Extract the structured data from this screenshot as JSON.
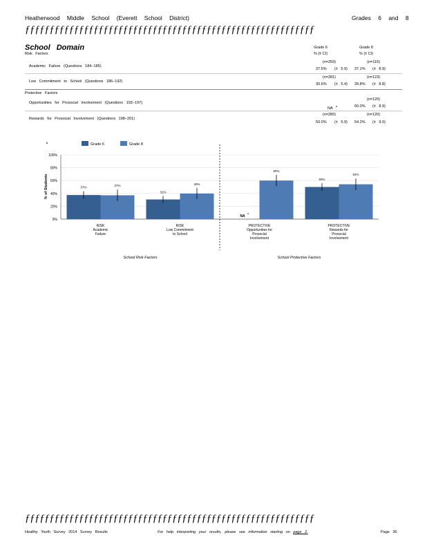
{
  "header": {
    "school": "Heatherwood Middle School (Everett School District)",
    "grades": "Grades 6 and 8",
    "rule": "ƒƒƒƒƒƒƒƒƒƒƒƒƒƒƒƒƒƒƒƒƒƒƒƒƒƒƒƒƒƒƒƒƒƒƒƒƒƒƒƒƒƒƒƒƒƒƒƒƒƒƒƒƒƒƒƒƒƒƒ"
  },
  "domain": {
    "title": "School Domain",
    "col_grade6": "Grade 6",
    "col_grade8": "Grade 8",
    "col_unit": "% (± CI)",
    "risk_label": "Risk Factors",
    "protective_label": "Protective Factors",
    "rows": [
      {
        "label": "Academic Failure (Questions 184−185)",
        "n6": "(n=259)",
        "n8": "(n=116)",
        "v6": "37.5%",
        "ci6": "(± 5.9)",
        "v8": "37.1%",
        "ci8": "(± 8.9)"
      },
      {
        "label": "Low Commitment to School (Questions 186−192)",
        "n6": "(n=281)",
        "n8": "(n=123)",
        "v6": "30.6%",
        "ci6": "(± 5.4)",
        "v8": "39.8%",
        "ci8": "(± 8.8)"
      },
      {
        "label": "Opportunities for Prosocial Involvement (Questions 193−197)",
        "n6": "",
        "n8": "(n=120)",
        "v6": "NA",
        "v6sup": "a",
        "ci6": "",
        "v8": "60.0%",
        "ci8": "(± 8.9)"
      },
      {
        "label": "Rewards for Prosocial Involvement (Questions 198−201)",
        "n6": "(n=280)",
        "n8": "(n=120)",
        "v6": "50.0%",
        "ci6": "(± 5.9)",
        "v8": "54.2%",
        "ci8": "(± 9.0)"
      }
    ]
  },
  "chart_data": {
    "type": "bar",
    "ylabel": "% of Students",
    "ylim": [
      0,
      100
    ],
    "yticks": [
      "0%",
      "20%",
      "40%",
      "60%",
      "80%",
      "100%"
    ],
    "grid": true,
    "legend_position": "top",
    "categories": [
      [
        "RISK",
        "Academic",
        "Failure"
      ],
      [
        "RISK",
        "Low Commitment",
        "to School"
      ],
      [
        "PROTECTIVE",
        "Opportunities for",
        "Prosocial",
        "Involvement"
      ],
      [
        "PROTECTIVE",
        "Rewards for",
        "Prosocial",
        "Involvement"
      ]
    ],
    "series": [
      {
        "name": "Grade 6",
        "color": "#365f91",
        "values": [
          37.5,
          30.6,
          null,
          50.0
        ],
        "ci": [
          5.9,
          5.4,
          null,
          5.9
        ],
        "labels": [
          "37%",
          "31%",
          "NA",
          "50%"
        ]
      },
      {
        "name": "Grade 8",
        "color": "#4f7bb5",
        "values": [
          37.1,
          39.8,
          60.0,
          54.2
        ],
        "ci": [
          8.9,
          8.8,
          8.9,
          9.0
        ],
        "labels": [
          "37%",
          "40%",
          "60%",
          "54%"
        ]
      }
    ],
    "na_superscript": "a",
    "group_labels": [
      "School Risk Factors",
      "School Protective Factors"
    ]
  },
  "footer": {
    "rule": "ƒƒƒƒƒƒƒƒƒƒƒƒƒƒƒƒƒƒƒƒƒƒƒƒƒƒƒƒƒƒƒƒƒƒƒƒƒƒƒƒƒƒƒƒƒƒƒƒƒƒƒƒƒƒƒƒƒƒƒ",
    "survey": "Healthy Youth Survey 2014 Survey Results",
    "help": "For help interpreting your results, please see information starting on",
    "help_link": "page 2.",
    "page": "Page 36"
  }
}
